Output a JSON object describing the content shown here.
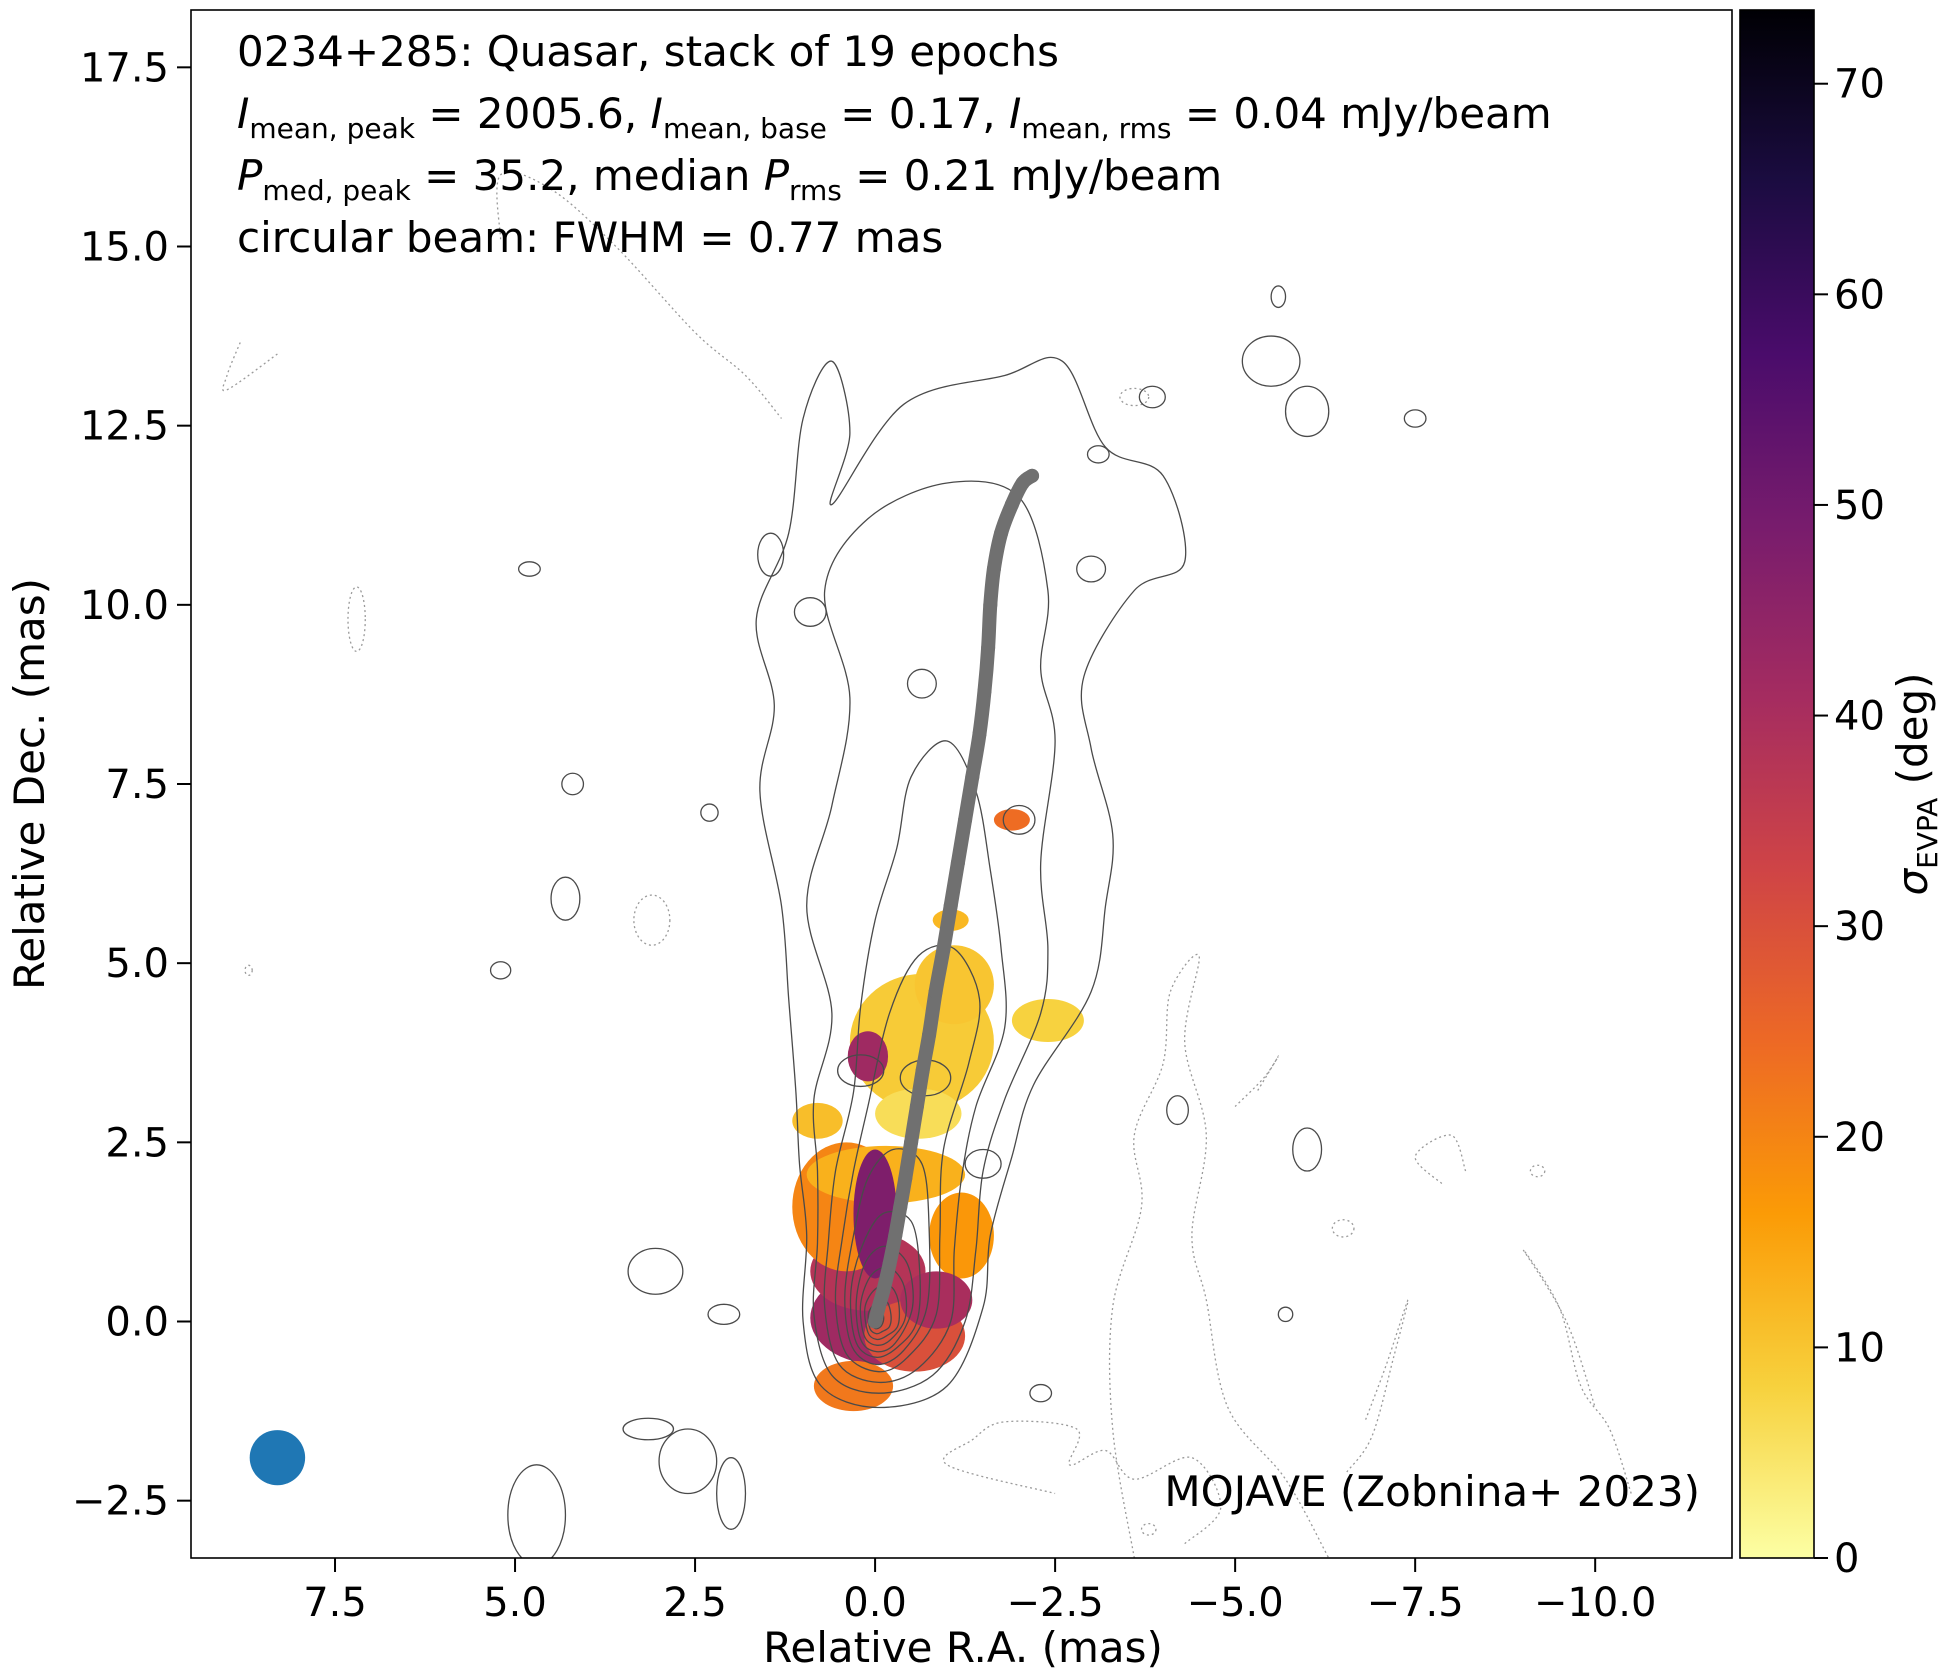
{
  "chart_data": {
    "type": "heatmap",
    "annotation_lines": [
      [
        "0234+285: Quasar, stack of 19 epochs"
      ],
      [
        "I",
        "mean, peak",
        " = 2005.6, ",
        "I",
        "mean, base",
        " = 0.17, ",
        "I",
        "mean, rms",
        " = 0.04 mJy/beam"
      ],
      [
        "P",
        "med, peak",
        " = 35.2, median ",
        "P",
        "rms",
        " = 0.21 mJy/beam"
      ],
      [
        "circular beam: FWHM = 0.77 mas"
      ]
    ],
    "credit": "MOJAVE (Zobnina+ 2023)",
    "xlabel": "Relative R.A. (mas)",
    "ylabel": "Relative Dec. (mas)",
    "colorbar_label": "σ",
    "colorbar_label_sub": "EVPA",
    "colorbar_label_unit": " (deg)",
    "xlim": [
      9.5,
      -11.9
    ],
    "ylim": [
      -3.3,
      18.3
    ],
    "x_inverted": true,
    "x_ticks": [
      "7.5",
      "5.0",
      "2.5",
      "0.0",
      "−2.5",
      "−5.0",
      "−7.5",
      "−10.0"
    ],
    "x_tick_values": [
      7.5,
      5.0,
      2.5,
      0.0,
      -2.5,
      -5.0,
      -7.5,
      -10.0
    ],
    "y_ticks": [
      "−2.5",
      "0.0",
      "2.5",
      "5.0",
      "7.5",
      "10.0",
      "12.5",
      "15.0",
      "17.5"
    ],
    "y_tick_values": [
      -2.5,
      0.0,
      2.5,
      5.0,
      7.5,
      10.0,
      12.5,
      15.0,
      17.5
    ],
    "colorbar_range": [
      0,
      73.5
    ],
    "colorbar_ticks": [
      "0",
      "10",
      "20",
      "30",
      "40",
      "50",
      "60",
      "70"
    ],
    "colorbar_tick_values": [
      0,
      10,
      20,
      30,
      40,
      50,
      60,
      70
    ],
    "colormap": "inferno_r",
    "colormap_stops": [
      "#fcffa4",
      "#f7d13d",
      "#fb9b06",
      "#ed6925",
      "#cf4446",
      "#a52c60",
      "#781c6d",
      "#4a0c6b",
      "#1b0c41",
      "#000004"
    ],
    "beam": {
      "x": 8.3,
      "y": -1.9,
      "fwhm": 0.77,
      "color": "#1f77b4"
    },
    "ridgeline_color": "#707070",
    "ridgeline": [
      [
        0.0,
        0.0
      ],
      [
        -0.05,
        0.2
      ],
      [
        -0.12,
        0.45
      ],
      [
        -0.2,
        0.8
      ],
      [
        -0.28,
        1.2
      ],
      [
        -0.35,
        1.6
      ],
      [
        -0.42,
        2.0
      ],
      [
        -0.5,
        2.5
      ],
      [
        -0.58,
        3.0
      ],
      [
        -0.66,
        3.5
      ],
      [
        -0.75,
        4.0
      ],
      [
        -0.84,
        4.6
      ],
      [
        -0.95,
        5.2
      ],
      [
        -1.05,
        5.8
      ],
      [
        -1.15,
        6.4
      ],
      [
        -1.25,
        7.0
      ],
      [
        -1.35,
        7.6
      ],
      [
        -1.45,
        8.2
      ],
      [
        -1.52,
        8.8
      ],
      [
        -1.57,
        9.4
      ],
      [
        -1.6,
        10.0
      ],
      [
        -1.65,
        10.5
      ],
      [
        -1.75,
        11.0
      ],
      [
        -1.9,
        11.4
      ],
      [
        -2.05,
        11.7
      ],
      [
        -2.18,
        11.8
      ]
    ],
    "polarization_blobs": [
      {
        "x": -0.05,
        "y": 0.05,
        "rx": 0.95,
        "ry": 0.65,
        "sigma_evpa": 42
      },
      {
        "x": 0.1,
        "y": 0.7,
        "rx": 0.8,
        "ry": 0.55,
        "sigma_evpa": 38
      },
      {
        "x": -0.55,
        "y": -0.2,
        "rx": 0.7,
        "ry": 0.5,
        "sigma_evpa": 30
      },
      {
        "x": 0.3,
        "y": -0.9,
        "rx": 0.55,
        "ry": 0.35,
        "sigma_evpa": 22
      },
      {
        "x": 0.4,
        "y": 1.6,
        "rx": 0.75,
        "ry": 0.9,
        "sigma_evpa": 20
      },
      {
        "x": -1.2,
        "y": 1.2,
        "rx": 0.45,
        "ry": 0.6,
        "sigma_evpa": 17
      },
      {
        "x": -0.15,
        "y": 2.05,
        "rx": 1.1,
        "ry": 0.4,
        "sigma_evpa": 13
      },
      {
        "x": 0.0,
        "y": 1.5,
        "rx": 0.3,
        "ry": 0.9,
        "sigma_evpa": 48
      },
      {
        "x": -0.85,
        "y": 0.3,
        "rx": 0.5,
        "ry": 0.4,
        "sigma_evpa": 40
      },
      {
        "x": -0.65,
        "y": 3.9,
        "rx": 1.0,
        "ry": 0.95,
        "sigma_evpa": 9
      },
      {
        "x": -1.1,
        "y": 4.7,
        "rx": 0.55,
        "ry": 0.55,
        "sigma_evpa": 10
      },
      {
        "x": 0.1,
        "y": 3.7,
        "rx": 0.28,
        "ry": 0.35,
        "sigma_evpa": 42
      },
      {
        "x": -2.4,
        "y": 4.2,
        "rx": 0.5,
        "ry": 0.3,
        "sigma_evpa": 8
      },
      {
        "x": -0.6,
        "y": 2.9,
        "rx": 0.6,
        "ry": 0.35,
        "sigma_evpa": 6
      },
      {
        "x": 0.8,
        "y": 2.8,
        "rx": 0.35,
        "ry": 0.25,
        "sigma_evpa": 11
      },
      {
        "x": -1.05,
        "y": 5.6,
        "rx": 0.25,
        "ry": 0.15,
        "sigma_evpa": 12
      },
      {
        "x": -1.9,
        "y": 7.0,
        "rx": 0.25,
        "ry": 0.15,
        "sigma_evpa": 24
      }
    ],
    "intensity_contours": [
      [
        [
          -0.05,
          -1.2
        ],
        [
          0.75,
          -0.9
        ],
        [
          1.0,
          0.0
        ],
        [
          0.95,
          1.2
        ],
        [
          1.05,
          2.2
        ],
        [
          1.1,
          3.2
        ],
        [
          1.2,
          4.5
        ],
        [
          1.3,
          5.8
        ],
        [
          1.6,
          7.4
        ],
        [
          1.4,
          8.6
        ],
        [
          1.65,
          9.8
        ],
        [
          1.2,
          11.0
        ],
        [
          1.0,
          12.6
        ],
        [
          0.6,
          13.4
        ],
        [
          0.35,
          12.4
        ],
        [
          0.6,
          11.4
        ],
        [
          -0.4,
          12.8
        ],
        [
          -1.8,
          13.2
        ],
        [
          -2.6,
          13.4
        ],
        [
          -3.2,
          12.2
        ],
        [
          -4.0,
          11.8
        ],
        [
          -4.3,
          10.6
        ],
        [
          -3.6,
          10.2
        ],
        [
          -2.9,
          9.0
        ],
        [
          -3.0,
          8.0
        ],
        [
          -3.3,
          6.8
        ],
        [
          -3.2,
          5.8
        ],
        [
          -3.0,
          4.6
        ],
        [
          -2.2,
          3.3
        ],
        [
          -1.9,
          2.3
        ],
        [
          -1.6,
          1.2
        ],
        [
          -1.5,
          0.2
        ],
        [
          -1.0,
          -0.9
        ]
      ],
      [
        [
          -0.05,
          -1.0
        ],
        [
          0.6,
          -0.75
        ],
        [
          0.85,
          0.1
        ],
        [
          0.8,
          1.1
        ],
        [
          0.8,
          2.1
        ],
        [
          0.85,
          3.1
        ],
        [
          0.6,
          4.3
        ],
        [
          0.95,
          5.8
        ],
        [
          0.6,
          7.2
        ],
        [
          0.35,
          8.7
        ],
        [
          0.7,
          10.2
        ],
        [
          0.1,
          11.2
        ],
        [
          -1.0,
          11.7
        ],
        [
          -2.0,
          11.5
        ],
        [
          -2.4,
          10.2
        ],
        [
          -2.3,
          9.1
        ],
        [
          -2.5,
          8.1
        ],
        [
          -2.3,
          6.4
        ],
        [
          -2.4,
          5.2
        ],
        [
          -2.3,
          4.3
        ],
        [
          -1.8,
          3.1
        ],
        [
          -1.5,
          2.1
        ],
        [
          -1.4,
          1.0
        ],
        [
          -1.25,
          0.0
        ],
        [
          -0.8,
          -0.75
        ]
      ],
      [
        [
          -0.05,
          -0.85
        ],
        [
          0.5,
          -0.6
        ],
        [
          0.7,
          0.2
        ],
        [
          0.65,
          1.1
        ],
        [
          0.55,
          2.1
        ],
        [
          0.3,
          3.2
        ],
        [
          0.2,
          4.4
        ],
        [
          0.0,
          5.6
        ],
        [
          -0.3,
          6.6
        ],
        [
          -0.5,
          7.6
        ],
        [
          -1.0,
          8.1
        ],
        [
          -1.4,
          7.4
        ],
        [
          -1.6,
          6.3
        ],
        [
          -1.75,
          5.2
        ],
        [
          -1.8,
          4.1
        ],
        [
          -1.4,
          3.0
        ],
        [
          -1.2,
          2.0
        ],
        [
          -1.1,
          1.0
        ],
        [
          -1.05,
          0.0
        ],
        [
          -0.6,
          -0.65
        ]
      ],
      [
        [
          -0.05,
          -0.7
        ],
        [
          0.4,
          -0.45
        ],
        [
          0.55,
          0.3
        ],
        [
          0.45,
          1.2
        ],
        [
          0.3,
          2.1
        ],
        [
          0.1,
          3.0
        ],
        [
          -0.2,
          4.3
        ],
        [
          -0.6,
          5.1
        ],
        [
          -1.1,
          5.2
        ],
        [
          -1.45,
          4.5
        ],
        [
          -1.3,
          3.6
        ],
        [
          -0.95,
          2.4
        ],
        [
          -0.9,
          1.2
        ],
        [
          -0.85,
          0.1
        ],
        [
          -0.45,
          -0.5
        ]
      ],
      [
        [
          -0.02,
          -0.6
        ],
        [
          0.32,
          -0.35
        ],
        [
          0.42,
          0.35
        ],
        [
          0.3,
          1.2
        ],
        [
          0.1,
          2.0
        ],
        [
          -0.25,
          2.4
        ],
        [
          -0.65,
          2.2
        ],
        [
          -0.75,
          1.3
        ],
        [
          -0.72,
          0.2
        ],
        [
          -0.4,
          -0.4
        ]
      ],
      [
        [
          -0.02,
          -0.5
        ],
        [
          0.26,
          -0.3
        ],
        [
          0.34,
          0.35
        ],
        [
          0.2,
          1.0
        ],
        [
          -0.1,
          1.5
        ],
        [
          -0.5,
          1.4
        ],
        [
          -0.62,
          0.7
        ],
        [
          -0.58,
          0.0
        ],
        [
          -0.32,
          -0.35
        ]
      ],
      [
        [
          -0.02,
          -0.42
        ],
        [
          0.2,
          -0.25
        ],
        [
          0.26,
          0.3
        ],
        [
          0.12,
          0.85
        ],
        [
          -0.15,
          1.05
        ],
        [
          -0.45,
          0.8
        ],
        [
          -0.52,
          0.2
        ],
        [
          -0.28,
          -0.3
        ]
      ],
      [
        [
          -0.02,
          -0.33
        ],
        [
          0.15,
          -0.2
        ],
        [
          0.2,
          0.25
        ],
        [
          0.05,
          0.65
        ],
        [
          -0.2,
          0.75
        ],
        [
          -0.4,
          0.5
        ],
        [
          -0.42,
          0.05
        ],
        [
          -0.22,
          -0.25
        ]
      ],
      [
        [
          -0.02,
          -0.25
        ],
        [
          0.1,
          -0.15
        ],
        [
          0.14,
          0.2
        ],
        [
          0.0,
          0.45
        ],
        [
          -0.2,
          0.5
        ],
        [
          -0.32,
          0.3
        ],
        [
          -0.32,
          -0.05
        ],
        [
          -0.16,
          -0.2
        ]
      ],
      [
        [
          -0.02,
          -0.17
        ],
        [
          0.07,
          -0.1
        ],
        [
          0.09,
          0.12
        ],
        [
          -0.03,
          0.28
        ],
        [
          -0.16,
          0.28
        ],
        [
          -0.22,
          0.1
        ],
        [
          -0.2,
          -0.07
        ],
        [
          -0.1,
          -0.14
        ]
      ],
      [
        [
          -0.01,
          -0.1
        ],
        [
          0.04,
          -0.05
        ],
        [
          0.05,
          0.06
        ],
        [
          -0.04,
          0.14
        ],
        [
          -0.1,
          0.12
        ],
        [
          -0.12,
          0.03
        ],
        [
          -0.08,
          -0.07
        ]
      ]
    ],
    "small_contours": [
      {
        "x": -1.5,
        "y": 2.2,
        "rx": 0.25,
        "ry": 0.2
      },
      {
        "x": -0.7,
        "y": 3.4,
        "rx": 0.35,
        "ry": 0.25
      },
      {
        "x": -2.0,
        "y": 7.0,
        "rx": 0.22,
        "ry": 0.2
      },
      {
        "x": -0.65,
        "y": 8.9,
        "rx": 0.2,
        "ry": 0.2
      },
      {
        "x": 0.9,
        "y": 9.9,
        "rx": 0.22,
        "ry": 0.2
      },
      {
        "x": 1.45,
        "y": 10.7,
        "rx": 0.18,
        "ry": 0.3
      },
      {
        "x": -3.0,
        "y": 10.5,
        "rx": 0.2,
        "ry": 0.18
      },
      {
        "x": 4.2,
        "y": 7.5,
        "rx": 0.15,
        "ry": 0.15
      },
      {
        "x": 2.3,
        "y": 7.1,
        "rx": 0.12,
        "ry": 0.12
      },
      {
        "x": 4.8,
        "y": 10.5,
        "rx": 0.15,
        "ry": 0.1
      },
      {
        "x": 4.3,
        "y": 5.9,
        "rx": 0.2,
        "ry": 0.3
      },
      {
        "x": 5.2,
        "y": 4.9,
        "rx": 0.14,
        "ry": 0.12
      },
      {
        "x": 0.2,
        "y": 3.5,
        "rx": 0.32,
        "ry": 0.22
      },
      {
        "x": 3.05,
        "y": 0.7,
        "rx": 0.38,
        "ry": 0.32
      },
      {
        "x": 2.1,
        "y": 0.1,
        "rx": 0.22,
        "ry": 0.14
      },
      {
        "x": 2.0,
        "y": -2.4,
        "rx": 0.2,
        "ry": 0.5
      },
      {
        "x": 3.15,
        "y": -1.5,
        "rx": 0.35,
        "ry": 0.15
      },
      {
        "x": 4.7,
        "y": -2.7,
        "rx": 0.4,
        "ry": 0.7
      },
      {
        "x": 2.6,
        "y": -1.95,
        "rx": 0.4,
        "ry": 0.45
      },
      {
        "x": -5.5,
        "y": 13.4,
        "rx": 0.4,
        "ry": 0.35
      },
      {
        "x": -6.0,
        "y": 12.7,
        "rx": 0.3,
        "ry": 0.35
      },
      {
        "x": -5.6,
        "y": 14.3,
        "rx": 0.1,
        "ry": 0.15
      },
      {
        "x": -7.5,
        "y": 12.6,
        "rx": 0.15,
        "ry": 0.12
      },
      {
        "x": -3.1,
        "y": 12.1,
        "rx": 0.15,
        "ry": 0.12
      },
      {
        "x": -3.85,
        "y": 12.9,
        "rx": 0.18,
        "ry": 0.15
      },
      {
        "x": -5.7,
        "y": 0.1,
        "rx": 0.1,
        "ry": 0.1
      },
      {
        "x": -6.0,
        "y": 2.4,
        "rx": 0.2,
        "ry": 0.3
      },
      {
        "x": -4.2,
        "y": 2.95,
        "rx": 0.15,
        "ry": 0.2
      },
      {
        "x": -2.3,
        "y": -1.0,
        "rx": 0.15,
        "ry": 0.12
      }
    ],
    "negative_contours": [
      [
        [
          -3.6,
          -3.3
        ],
        [
          -3.3,
          -1.5
        ],
        [
          -3.3,
          0.2
        ],
        [
          -3.7,
          1.6
        ],
        [
          -3.6,
          2.6
        ],
        [
          -4.0,
          3.6
        ],
        [
          -4.1,
          4.6
        ],
        [
          -4.5,
          5.1
        ],
        [
          -4.3,
          3.9
        ],
        [
          -4.6,
          2.6
        ],
        [
          -4.4,
          1.2
        ],
        [
          -4.6,
          0.3
        ],
        [
          -4.9,
          -1.2
        ],
        [
          -5.7,
          -2.2
        ],
        [
          -6.3,
          -3.3
        ]
      ],
      [
        [
          -4.3,
          -3.1
        ],
        [
          -4.8,
          -2.6
        ],
        [
          -4.4,
          -1.9
        ],
        [
          -3.6,
          -2.2
        ],
        [
          -3.2,
          -1.8
        ],
        [
          -2.7,
          -2.0
        ],
        [
          -2.8,
          -1.5
        ],
        [
          -1.8,
          -1.4
        ],
        [
          -1.35,
          -1.65
        ],
        [
          -1.0,
          -2.0
        ],
        [
          -2.5,
          -2.4
        ]
      ],
      [
        [
          8.3,
          13.5
        ],
        [
          9.0,
          13.0
        ],
        [
          9.0,
          13.2
        ],
        [
          8.8,
          13.7
        ]
      ],
      [
        [
          5.2,
          15.1
        ],
        [
          5.2,
          16.0
        ],
        [
          4.5,
          15.8
        ],
        [
          3.6,
          15.0
        ],
        [
          2.5,
          13.8
        ],
        [
          1.8,
          13.2
        ],
        [
          1.3,
          12.6
        ]
      ],
      [
        [
          -10.5,
          -2.4
        ],
        [
          -10.2,
          -1.5
        ],
        [
          -9.8,
          -0.9
        ],
        [
          -9.5,
          0.2
        ],
        [
          -9.0,
          1.0
        ],
        [
          -9.6,
          0.0
        ],
        [
          -10.0,
          -1.2
        ]
      ],
      [
        [
          -6.55,
          -2.1
        ],
        [
          -6.9,
          -1.6
        ],
        [
          -7.2,
          -0.5
        ],
        [
          -7.4,
          0.3
        ],
        [
          -7.1,
          -0.6
        ],
        [
          -6.8,
          -1.4
        ]
      ],
      [
        [
          -8.2,
          2.1
        ],
        [
          -8.0,
          2.6
        ],
        [
          -7.5,
          2.3
        ],
        [
          -7.9,
          1.9
        ]
      ],
      [
        [
          -5.0,
          3.0
        ],
        [
          -5.4,
          3.4
        ],
        [
          -5.6,
          3.7
        ],
        [
          -5.3,
          3.2
        ]
      ]
    ],
    "dotted_blobs": [
      {
        "x": 3.1,
        "y": 5.6,
        "rx": 0.25,
        "ry": 0.35
      },
      {
        "x": 7.2,
        "y": 9.8,
        "rx": 0.12,
        "ry": 0.45
      },
      {
        "x": -9.2,
        "y": 2.1,
        "rx": 0.1,
        "ry": 0.08
      },
      {
        "x": -3.6,
        "y": 12.9,
        "rx": 0.2,
        "ry": 0.12
      },
      {
        "x": -6.5,
        "y": 1.3,
        "rx": 0.15,
        "ry": 0.12
      },
      {
        "x": 8.7,
        "y": 4.9,
        "rx": 0.05,
        "ry": 0.07
      },
      {
        "x": -3.8,
        "y": -2.9,
        "rx": 0.1,
        "ry": 0.08
      }
    ]
  }
}
